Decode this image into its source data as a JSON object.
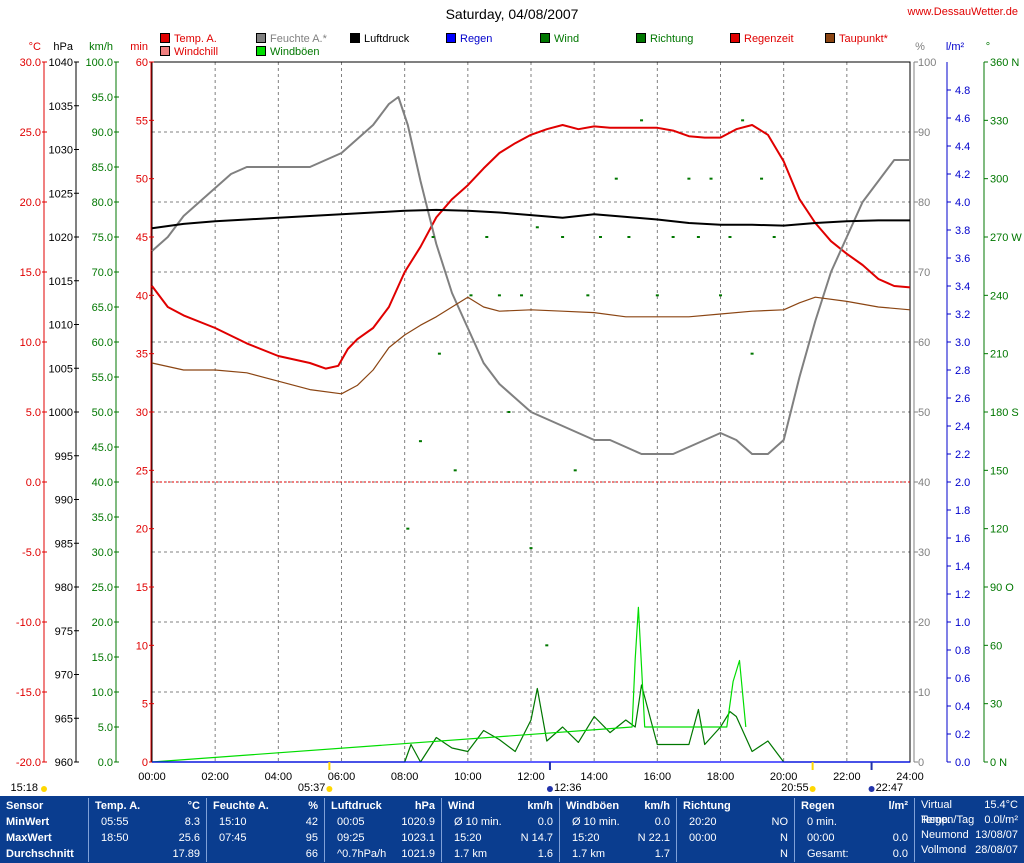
{
  "title": "Saturday, 04/08/2007",
  "site": "www.DessauWetter.de",
  "legend": [
    {
      "label": "Temp. A.",
      "color": "#e00000",
      "text_color": "#e00000"
    },
    {
      "label": "Windchill",
      "color": "#f08080",
      "text_color": "#e00000"
    },
    {
      "label": "Feuchte A.*",
      "color": "#808080",
      "text_color": "#808080"
    },
    {
      "label": "Windböen",
      "color": "#00dd00",
      "text_color": "#007700"
    },
    {
      "label": "Luftdruck",
      "color": "#000000",
      "text_color": "#000000"
    },
    {
      "label": "Regen",
      "color": "#0000ff",
      "text_color": "#0000cc"
    },
    {
      "label": "Wind",
      "color": "#007700",
      "text_color": "#007700"
    },
    {
      "label": "Richtung",
      "color": "#007700",
      "text_color": "#007700"
    },
    {
      "label": "Regenzeit",
      "color": "#e00000",
      "text_color": "#e00000"
    },
    {
      "label": "Taupunkt*",
      "color": "#8b4513",
      "text_color": "#e00000"
    }
  ],
  "units": {
    "temp": "°C",
    "pressure": "hPa",
    "wind": "km/h",
    "min": "min",
    "humidity": "%",
    "rain": "l/m²",
    "direction": "°"
  },
  "axes": {
    "temp_ticks": [
      "30.0",
      "25.0",
      "20.0",
      "15.0",
      "10.0",
      "5.0",
      "0.0",
      "-5.0",
      "-10.0",
      "-15.0",
      "-20.0"
    ],
    "pressure_ticks": [
      "1040",
      "1035",
      "1030",
      "1025",
      "1020",
      "1015",
      "1010",
      "1005",
      "1000",
      "995",
      "990",
      "985",
      "980",
      "975",
      "970",
      "965",
      "960"
    ],
    "wind_ticks": [
      "100.0",
      "95.0",
      "90.0",
      "85.0",
      "80.0",
      "75.0",
      "70.0",
      "65.0",
      "60.0",
      "55.0",
      "50.0",
      "45.0",
      "40.0",
      "35.0",
      "30.0",
      "25.0",
      "20.0",
      "15.0",
      "10.0",
      "5.0",
      "0.0"
    ],
    "min_ticks": [
      "60",
      "55",
      "50",
      "45",
      "40",
      "35",
      "30",
      "25",
      "20",
      "15",
      "10",
      "5",
      "0"
    ],
    "humidity_ticks": [
      "100",
      "90",
      "80",
      "70",
      "60",
      "50",
      "40",
      "30",
      "20",
      "10",
      "0"
    ],
    "rain_ticks": [
      "4.8",
      "4.6",
      "4.4",
      "4.2",
      "4.0",
      "3.8",
      "3.6",
      "3.4",
      "3.2",
      "3.0",
      "2.8",
      "2.6",
      "2.4",
      "2.2",
      "2.0",
      "1.8",
      "1.6",
      "1.4",
      "1.2",
      "1.0",
      "0.8",
      "0.6",
      "0.4",
      "0.2",
      "0.0"
    ],
    "dir_ticks": [
      "360 N",
      "330",
      "300",
      "270 W",
      "240",
      "210",
      "180 S",
      "150",
      "120",
      "90 O",
      "60",
      "30",
      "0 N"
    ],
    "x_ticks": [
      "00:00",
      "02:00",
      "04:00",
      "06:00",
      "08:00",
      "10:00",
      "12:00",
      "14:00",
      "16:00",
      "18:00",
      "20:00",
      "22:00",
      "24:00"
    ]
  },
  "events": {
    "moon_set": "15:18",
    "sunrise": "05:37",
    "moon_rise_1": "12:36",
    "sunset": "20:55",
    "moon_rise_2": "22:47"
  },
  "chart_data": {
    "type": "line",
    "x_unit": "hour of day",
    "xlim": [
      0,
      24
    ],
    "series": [
      {
        "name": "Temp. A.",
        "axis": "°C",
        "color": "#e00000",
        "x": [
          0,
          0.5,
          1,
          2,
          3,
          4,
          5,
          5.5,
          5.9,
          6.2,
          6.5,
          7,
          7.5,
          8,
          8.5,
          9,
          9.5,
          10,
          10.5,
          11,
          11.5,
          12,
          12.5,
          13,
          13.5,
          14,
          14.5,
          15,
          15.5,
          16,
          16.5,
          17,
          17.5,
          18,
          18.5,
          19,
          19.5,
          20,
          20.5,
          21,
          21.5,
          22,
          22.5,
          23,
          23.5,
          24
        ],
        "y": [
          14,
          12.5,
          11.9,
          11,
          9.9,
          9,
          8.5,
          8.1,
          8.3,
          9.5,
          10.2,
          11,
          12.5,
          15,
          16.8,
          18.9,
          20.2,
          21.2,
          22.4,
          23.5,
          24.2,
          24.8,
          25.2,
          25.5,
          25.2,
          25.4,
          25.3,
          25.3,
          25.3,
          25.3,
          25.1,
          24.7,
          24.6,
          24.6,
          25.2,
          25.5,
          24.8,
          22.9,
          20.2,
          18.5,
          17.2,
          16.3,
          15.5,
          14.5,
          14,
          13.9
        ]
      },
      {
        "name": "Feuchte A.*",
        "axis": "%",
        "color": "#808080",
        "x": [
          0,
          0.5,
          1,
          1.5,
          2,
          2.5,
          3,
          4,
          5,
          5.5,
          6,
          6.5,
          7,
          7.5,
          7.8,
          8.1,
          8.5,
          9,
          9.5,
          10,
          10.5,
          11,
          11.5,
          12,
          12.5,
          13,
          13.5,
          14,
          14.5,
          15,
          15.5,
          16,
          16.5,
          17,
          17.5,
          18,
          18.5,
          19,
          19.5,
          20,
          20.5,
          21,
          21.5,
          22,
          22.5,
          23,
          23.5,
          24
        ],
        "y": [
          73,
          75,
          78,
          80,
          82,
          84,
          85,
          85,
          85,
          86,
          87,
          89,
          91,
          94,
          95,
          91,
          83,
          74,
          67,
          62,
          57,
          54,
          52,
          50,
          49,
          48,
          47,
          46,
          46,
          45,
          44,
          44,
          44,
          45,
          46,
          47,
          46,
          44,
          44,
          46,
          55,
          63,
          70,
          75,
          80,
          83,
          86,
          86
        ]
      },
      {
        "name": "Luftdruck",
        "axis": "hPa",
        "color": "#000000",
        "x": [
          0,
          1,
          2,
          3,
          4,
          5,
          6,
          7,
          8,
          9,
          10,
          11,
          12,
          13,
          14,
          15,
          16,
          17,
          18,
          19,
          20,
          21,
          22,
          23,
          24
        ],
        "y": [
          1021,
          1021.5,
          1021.8,
          1022,
          1022.2,
          1022.4,
          1022.6,
          1022.8,
          1023,
          1023.1,
          1023,
          1022.8,
          1022.5,
          1022.2,
          1022.6,
          1022.3,
          1022,
          1021.6,
          1021.4,
          1021.4,
          1021.3,
          1021.6,
          1021.8,
          1021.9,
          1021.9
        ]
      },
      {
        "name": "Taupunkt*",
        "axis": "°C",
        "color": "#8b4513",
        "x": [
          0,
          1,
          2,
          3,
          4,
          5,
          6,
          6.5,
          7,
          7.5,
          8,
          8.5,
          9,
          9.5,
          10,
          10.5,
          11,
          12,
          13,
          14,
          15,
          16,
          17,
          18,
          19,
          20,
          20.5,
          21,
          22,
          23,
          24
        ],
        "y": [
          8.5,
          8.0,
          8.0,
          7.8,
          7.2,
          6.6,
          6.3,
          6.9,
          8.0,
          9.6,
          10.5,
          11.2,
          11.8,
          12.5,
          13.2,
          12.5,
          12.2,
          12.3,
          12.2,
          12.1,
          11.8,
          11.8,
          11.8,
          12.0,
          12.2,
          12.3,
          12.8,
          13.2,
          12.9,
          12.5,
          12.3
        ]
      },
      {
        "name": "Wind",
        "axis": "km/h",
        "color": "#007700",
        "x": [
          0,
          8,
          8.2,
          8.5,
          9,
          9.5,
          10,
          10.5,
          11,
          11.5,
          12,
          12.2,
          12.5,
          13,
          13.5,
          14,
          14.5,
          15,
          15.3,
          15.5,
          16,
          17,
          17.3,
          17.5,
          18,
          18.3,
          18.5,
          19,
          19.5,
          20,
          24
        ],
        "y": [
          0,
          0,
          2.5,
          0,
          3.5,
          2,
          1.5,
          4.5,
          3.2,
          1.5,
          6,
          10.5,
          3,
          5,
          2.8,
          6.5,
          4.2,
          6,
          5,
          11,
          2.5,
          2.5,
          7.5,
          2.5,
          5,
          7.2,
          6.5,
          1.5,
          3,
          0,
          0
        ]
      },
      {
        "name": "Windböen",
        "axis": "km/h",
        "color": "#00dd00",
        "x": [
          0,
          15.2,
          15.3,
          15.4,
          15.6,
          18.2,
          18.4,
          18.6,
          18.8
        ],
        "y": [
          0,
          5,
          14.7,
          22.1,
          5,
          5,
          11.5,
          14.5,
          5
        ]
      },
      {
        "name": "Richtung",
        "axis": "°",
        "color": "#007700",
        "style": "dots",
        "x": [
          8.1,
          8.5,
          8.9,
          9.1,
          9.6,
          10.1,
          10.6,
          11,
          11.3,
          11.7,
          12,
          12.2,
          12.5,
          13,
          13.4,
          13.8,
          14.2,
          14.7,
          15.1,
          15.5,
          16,
          16.5,
          17,
          17.3,
          17.7,
          18,
          18.3,
          18.7,
          19,
          19.3,
          19.7
        ],
        "y": [
          120,
          165,
          270,
          210,
          150,
          240,
          270,
          240,
          180,
          240,
          110,
          275,
          60,
          270,
          150,
          240,
          270,
          300,
          270,
          330,
          240,
          270,
          300,
          270,
          300,
          240,
          270,
          330,
          210,
          300,
          270
        ]
      },
      {
        "name": "Regen",
        "axis": "l/m²",
        "color": "#0000ff",
        "x": [
          0,
          24
        ],
        "y": [
          0,
          0
        ]
      }
    ],
    "reference_lines": [
      {
        "axis": "°C",
        "y": 0,
        "style": "dotted",
        "color": "#e00000"
      }
    ]
  },
  "stats": {
    "sensor": {
      "h": "Sensor",
      "rows": [
        "MinWert",
        "MaxWert",
        "Durchschnitt"
      ]
    },
    "temp": {
      "h": "Temp. A.",
      "unit": "°C",
      "rows": [
        [
          "05:55",
          "8.3"
        ],
        [
          "18:50",
          "25.6"
        ],
        [
          "",
          "17.89"
        ]
      ]
    },
    "feuchte": {
      "h": "Feuchte A.",
      "unit": "%",
      "rows": [
        [
          "15:10",
          "42"
        ],
        [
          "07:45",
          "95"
        ],
        [
          "",
          "66"
        ]
      ]
    },
    "druck": {
      "h": "Luftdruck",
      "unit": "hPa",
      "rows": [
        [
          "00:05",
          "1020.9"
        ],
        [
          "09:25",
          "1023.1"
        ],
        [
          "^0.7hPa/h",
          "1021.9"
        ]
      ]
    },
    "wind": {
      "h": "Wind",
      "unit": "km/h",
      "rows": [
        [
          "Ø 10 min.",
          "0.0"
        ],
        [
          "15:20",
          "N 14.7"
        ],
        [
          "1.7 km",
          "1.6"
        ]
      ]
    },
    "boeen": {
      "h": "Windböen",
      "unit": "km/h",
      "rows": [
        [
          "Ø 10 min.",
          "0.0"
        ],
        [
          "15:20",
          "N 22.1"
        ],
        [
          "1.7 km",
          "1.7"
        ]
      ]
    },
    "richtung": {
      "h": "Richtung",
      "unit": "",
      "rows": [
        [
          "20:20",
          "NO"
        ],
        [
          "00:00",
          "N"
        ],
        [
          "",
          "N"
        ]
      ]
    },
    "regen": {
      "h": "Regen",
      "unit": "l/m²",
      "rows": [
        [
          "0 min.",
          ""
        ],
        [
          "00:00",
          "0.0"
        ],
        [
          "Gesamt:",
          "0.0"
        ]
      ]
    },
    "virtual": {
      "rows": [
        [
          "Virtual Temp.",
          "15.4°C"
        ],
        [
          "Regen/Tag",
          "0.0l/m²"
        ],
        [
          "Neumond",
          "13/08/07"
        ],
        [
          "Vollmond",
          "28/08/07"
        ]
      ]
    }
  }
}
